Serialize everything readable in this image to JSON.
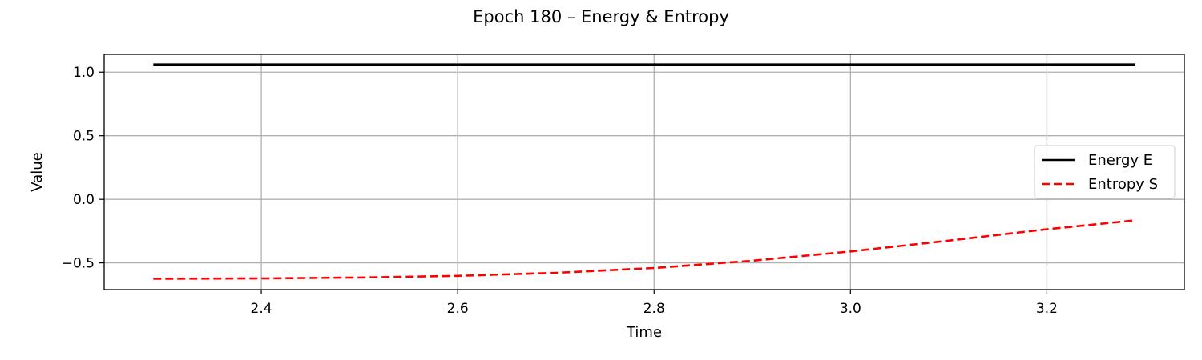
{
  "chart_data": {
    "type": "line",
    "title": "Epoch 180 – Energy & Entropy",
    "xlabel": "Time",
    "ylabel": "Value",
    "xlim": [
      2.24,
      3.34
    ],
    "ylim": [
      -0.71,
      1.14
    ],
    "xticks": [
      2.4,
      2.6,
      2.8,
      3.0,
      3.2
    ],
    "xtick_labels": [
      "2.4",
      "2.6",
      "2.8",
      "3.0",
      "3.2"
    ],
    "yticks": [
      1.0,
      0.5,
      0.0,
      -0.5
    ],
    "ytick_labels": [
      "1.0",
      "0.5",
      "0.0",
      "−0.5"
    ],
    "grid": true,
    "legend_position": "center-right",
    "series": [
      {
        "name": "Energy E",
        "color": "#000000",
        "style": "solid",
        "x": [
          2.29,
          3.29
        ],
        "y": [
          1.06,
          1.06
        ]
      },
      {
        "name": "Entropy S",
        "color": "#ff0000",
        "style": "dashed",
        "x": [
          2.29,
          2.4,
          2.5,
          2.6,
          2.7,
          2.8,
          2.9,
          3.0,
          3.1,
          3.2,
          3.29
        ],
        "y": [
          -0.625,
          -0.622,
          -0.615,
          -0.602,
          -0.578,
          -0.54,
          -0.483,
          -0.41,
          -0.325,
          -0.235,
          -0.165
        ]
      }
    ]
  }
}
